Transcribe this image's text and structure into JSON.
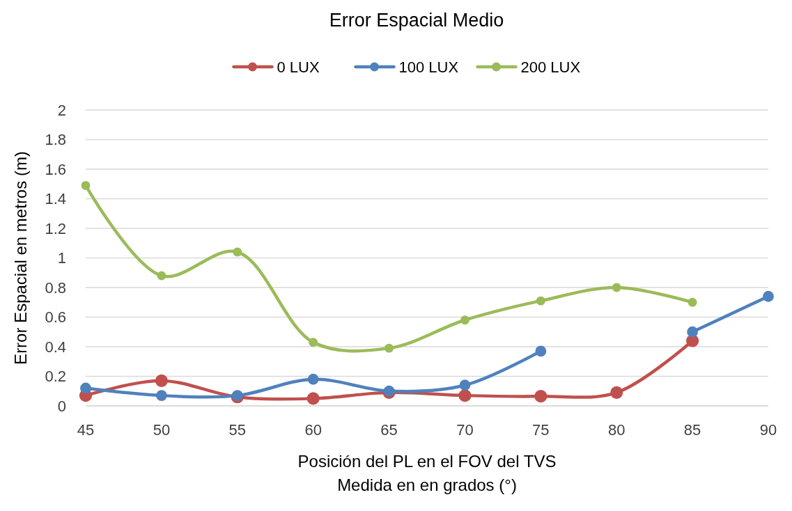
{
  "chart_data": {
    "type": "line",
    "title": "Error Espacial Medio",
    "xlabel": "Posición del PL en el FOV del TVS\nMedida en en grados (°)",
    "ylabel": "Error Espacial en metros (m)",
    "x": [
      45,
      50,
      55,
      60,
      65,
      70,
      75,
      80,
      85,
      90
    ],
    "series": [
      {
        "name": "0 LUX",
        "color": "#c0504d",
        "values": [
          0.07,
          0.17,
          0.06,
          0.05,
          0.09,
          0.07,
          0.065,
          0.09,
          0.44,
          null
        ]
      },
      {
        "name": "100 LUX",
        "color": "#4f81bd",
        "values": [
          0.12,
          0.07,
          0.07,
          0.18,
          0.1,
          0.14,
          0.37,
          null,
          0.5,
          0.74
        ]
      },
      {
        "name": "200 LUX",
        "color": "#9bbb59",
        "values": [
          1.49,
          0.88,
          1.04,
          0.43,
          0.39,
          0.58,
          0.71,
          0.8,
          0.7,
          null
        ]
      }
    ],
    "xlim": [
      45,
      90
    ],
    "xticks": [
      45,
      50,
      55,
      60,
      65,
      70,
      75,
      80,
      85,
      90
    ],
    "ylim": [
      0,
      2
    ],
    "yticks": [
      0,
      0.2,
      0.4,
      0.6,
      0.8,
      1,
      1.2,
      1.4,
      1.6,
      1.8,
      2
    ],
    "grid": "y",
    "legend": "top",
    "marker": "circle",
    "line_style": "solid"
  }
}
